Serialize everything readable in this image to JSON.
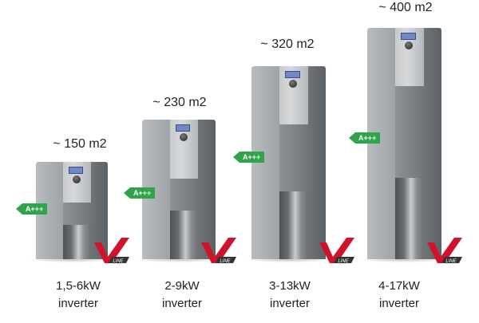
{
  "energy_label": "A+++",
  "brand_colors": {
    "label_green": "#2fa44a",
    "logo_red": "#d0122b"
  },
  "units": [
    {
      "area": "~ 150 m2",
      "power": "1,5-6kW",
      "type": "inverter",
      "logo_text": "LINE"
    },
    {
      "area": "~ 230 m2",
      "power": "2-9kW",
      "type": "inverter",
      "logo_text": "LINE"
    },
    {
      "area": "~ 320 m2",
      "power": "3-13kW",
      "type": "inverter",
      "logo_text": "LINE"
    },
    {
      "area": "~ 400 m2",
      "power": "4-17kW",
      "type": "inverter",
      "logo_text": "LINE"
    }
  ]
}
